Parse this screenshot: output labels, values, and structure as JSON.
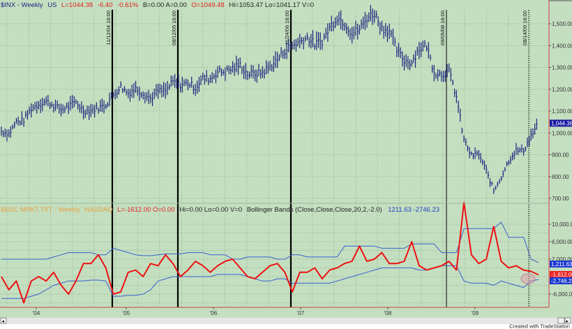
{
  "colors": {
    "background": "#c4dfc0",
    "price": "#1a237e",
    "indicator": "#ee1111",
    "bands": "#3a5fcd",
    "axis_line": "#d04040"
  },
  "chart_data": [
    {
      "type": "bar",
      "subtype": "ohlc-weekly",
      "title": "$INX - Weekly",
      "header": {
        "symbol": "$INX - Weekly",
        "exchange": "US",
        "last": "L=1044.38",
        "change": "-6.40",
        "pct_change": "-0.61%",
        "bid_ask": "B=0.00  A=0.00",
        "open": "O=1049.48",
        "hi_lo_vol": "Hi=1053.47  Lo=1041.17  V=0"
      },
      "x_period": "monthly approximations Aug 2003 - Aug 2009",
      "values": [
        1008,
        996,
        1050,
        1058,
        1112,
        1131,
        1145,
        1126,
        1107,
        1121,
        1141,
        1101,
        1104,
        1115,
        1130,
        1174,
        1212,
        1181,
        1204,
        1181,
        1157,
        1192,
        1191,
        1234,
        1220,
        1229,
        1207,
        1249,
        1248,
        1280,
        1281,
        1295,
        1311,
        1270,
        1270,
        1277,
        1304,
        1336,
        1378,
        1401,
        1418,
        1438,
        1407,
        1421,
        1482,
        1531,
        1503,
        1455,
        1474,
        1527,
        1549,
        1481,
        1468,
        1378,
        1331,
        1323,
        1386,
        1400,
        1280,
        1267,
        1283,
        1166,
        969,
        896,
        903,
        826,
        735,
        798,
        873,
        919,
        919,
        987,
        1044
      ],
      "ylim": [
        680,
        1580
      ],
      "y_ticks": [
        "1,500.00",
        "1,400.00",
        "1,300.00",
        "1,200.00",
        "1,100.00",
        "1,000.00",
        "900.00",
        "800.00",
        "700.00"
      ],
      "y_tick_values": [
        1500,
        1400,
        1300,
        1200,
        1100,
        1000,
        900,
        800,
        700
      ],
      "last_value_label": "1,044.38"
    },
    {
      "type": "line",
      "title": "$NSC MRKT.TXT - Weekly",
      "header": {
        "symbol": "$NSC MRKT.TXT - Weekly",
        "exchange": "NASDAQ",
        "last_open": "L=-1612.00  O=0.00",
        "hi_lo_vol": "Hi=0.00  Lo=0.00  V=0",
        "study": "Bollinger Bands (Close,Close,Close,20,2,-2.0)",
        "band_values": "1211.63  -2746.23"
      },
      "units": "thousands",
      "series": [
        {
          "name": "indicator",
          "values": [
            -2,
            -5,
            -3,
            -8,
            -3,
            -2,
            -3,
            -1,
            -4,
            -6,
            -3,
            1,
            1,
            3,
            0,
            -6,
            -5.5,
            -1,
            -0.5,
            -2,
            1,
            0.5,
            3,
            1,
            -2,
            -0.5,
            1.5,
            0.5,
            -1,
            0.5,
            1.5,
            2,
            0,
            -2,
            -2.5,
            -1,
            0.5,
            1,
            -1,
            -5.5,
            -1,
            -1,
            0,
            -2.5,
            -0.5,
            0,
            1,
            1.5,
            5,
            1.5,
            2,
            3.5,
            1,
            1,
            1.5,
            6,
            0.5,
            -0.5,
            0,
            0.5,
            1.5,
            -0.5,
            15,
            3,
            1,
            2,
            9.5,
            1.5,
            0,
            0.5,
            -0.5,
            -0.8,
            -1.6
          ]
        },
        {
          "name": "upper_band",
          "values": [
            2,
            2,
            2,
            2,
            2,
            2,
            2,
            2.5,
            3,
            3.5,
            3.5,
            3.5,
            3.5,
            3,
            3,
            4.5,
            4,
            3.5,
            3,
            2.8,
            2.8,
            3,
            3.2,
            3.2,
            3.2,
            3.5,
            3.5,
            3.5,
            3,
            3,
            3,
            2,
            2,
            2.5,
            2.5,
            2.5,
            2.5,
            2,
            2,
            3,
            3,
            2.5,
            2.5,
            2.5,
            2.5,
            2.5,
            5,
            5,
            5,
            5,
            5,
            4.5,
            4.5,
            4.5,
            4.5,
            5.5,
            5.5,
            5.5,
            5.5,
            3.5,
            3.5,
            3.5,
            9,
            9,
            9,
            9,
            9,
            10.5,
            7,
            7,
            7,
            2,
            1.2
          ]
        },
        {
          "name": "lower_band",
          "values": [
            -7,
            -7,
            -7,
            -7,
            -6.5,
            -6,
            -5,
            -4,
            -3.5,
            -3,
            -3,
            -3,
            -2.8,
            -2.8,
            -3,
            -6.5,
            -6.5,
            -6.3,
            -6.3,
            -6,
            -5,
            -3,
            -2.5,
            -2,
            -2,
            -2,
            -2,
            -2,
            -2,
            -1.5,
            -1.5,
            -1.5,
            -1.5,
            -2,
            -2.5,
            -3,
            -3,
            -2.5,
            -2.5,
            -3.5,
            -3.5,
            -3.5,
            -3.5,
            -3.5,
            -3.5,
            -3,
            -2.5,
            -2,
            -1.5,
            -1,
            -0.5,
            0,
            0,
            0,
            0,
            0,
            -0.5,
            -0.5,
            0,
            0.5,
            0.5,
            0.5,
            -3,
            -3.5,
            -3.5,
            -3.5,
            -4,
            -3,
            -3.5,
            -4,
            -4.5,
            -3,
            -2.7
          ]
        }
      ],
      "ylim": [
        -9000,
        15500
      ],
      "y_ticks": [
        "10,000.00",
        "6,000.00",
        "2,000.00",
        "-6,000.00"
      ],
      "y_tick_values": [
        10000,
        6000,
        2000,
        -6000
      ],
      "last_value_labels": {
        "upper": "1,211.63",
        "indicator": "-1,612.00",
        "lower": "-2,746.23"
      }
    }
  ],
  "x_ticks": [
    "'04",
    "'05",
    "'06",
    "'07",
    "'08",
    "'09"
  ],
  "vertical_markers": [
    "11/12/04 16:00",
    "08/12/05 16:00",
    "11/24/06 16:00",
    "09/05/08 16:00",
    "08/14/09 16:00"
  ],
  "footer": "Created with TradeStation"
}
